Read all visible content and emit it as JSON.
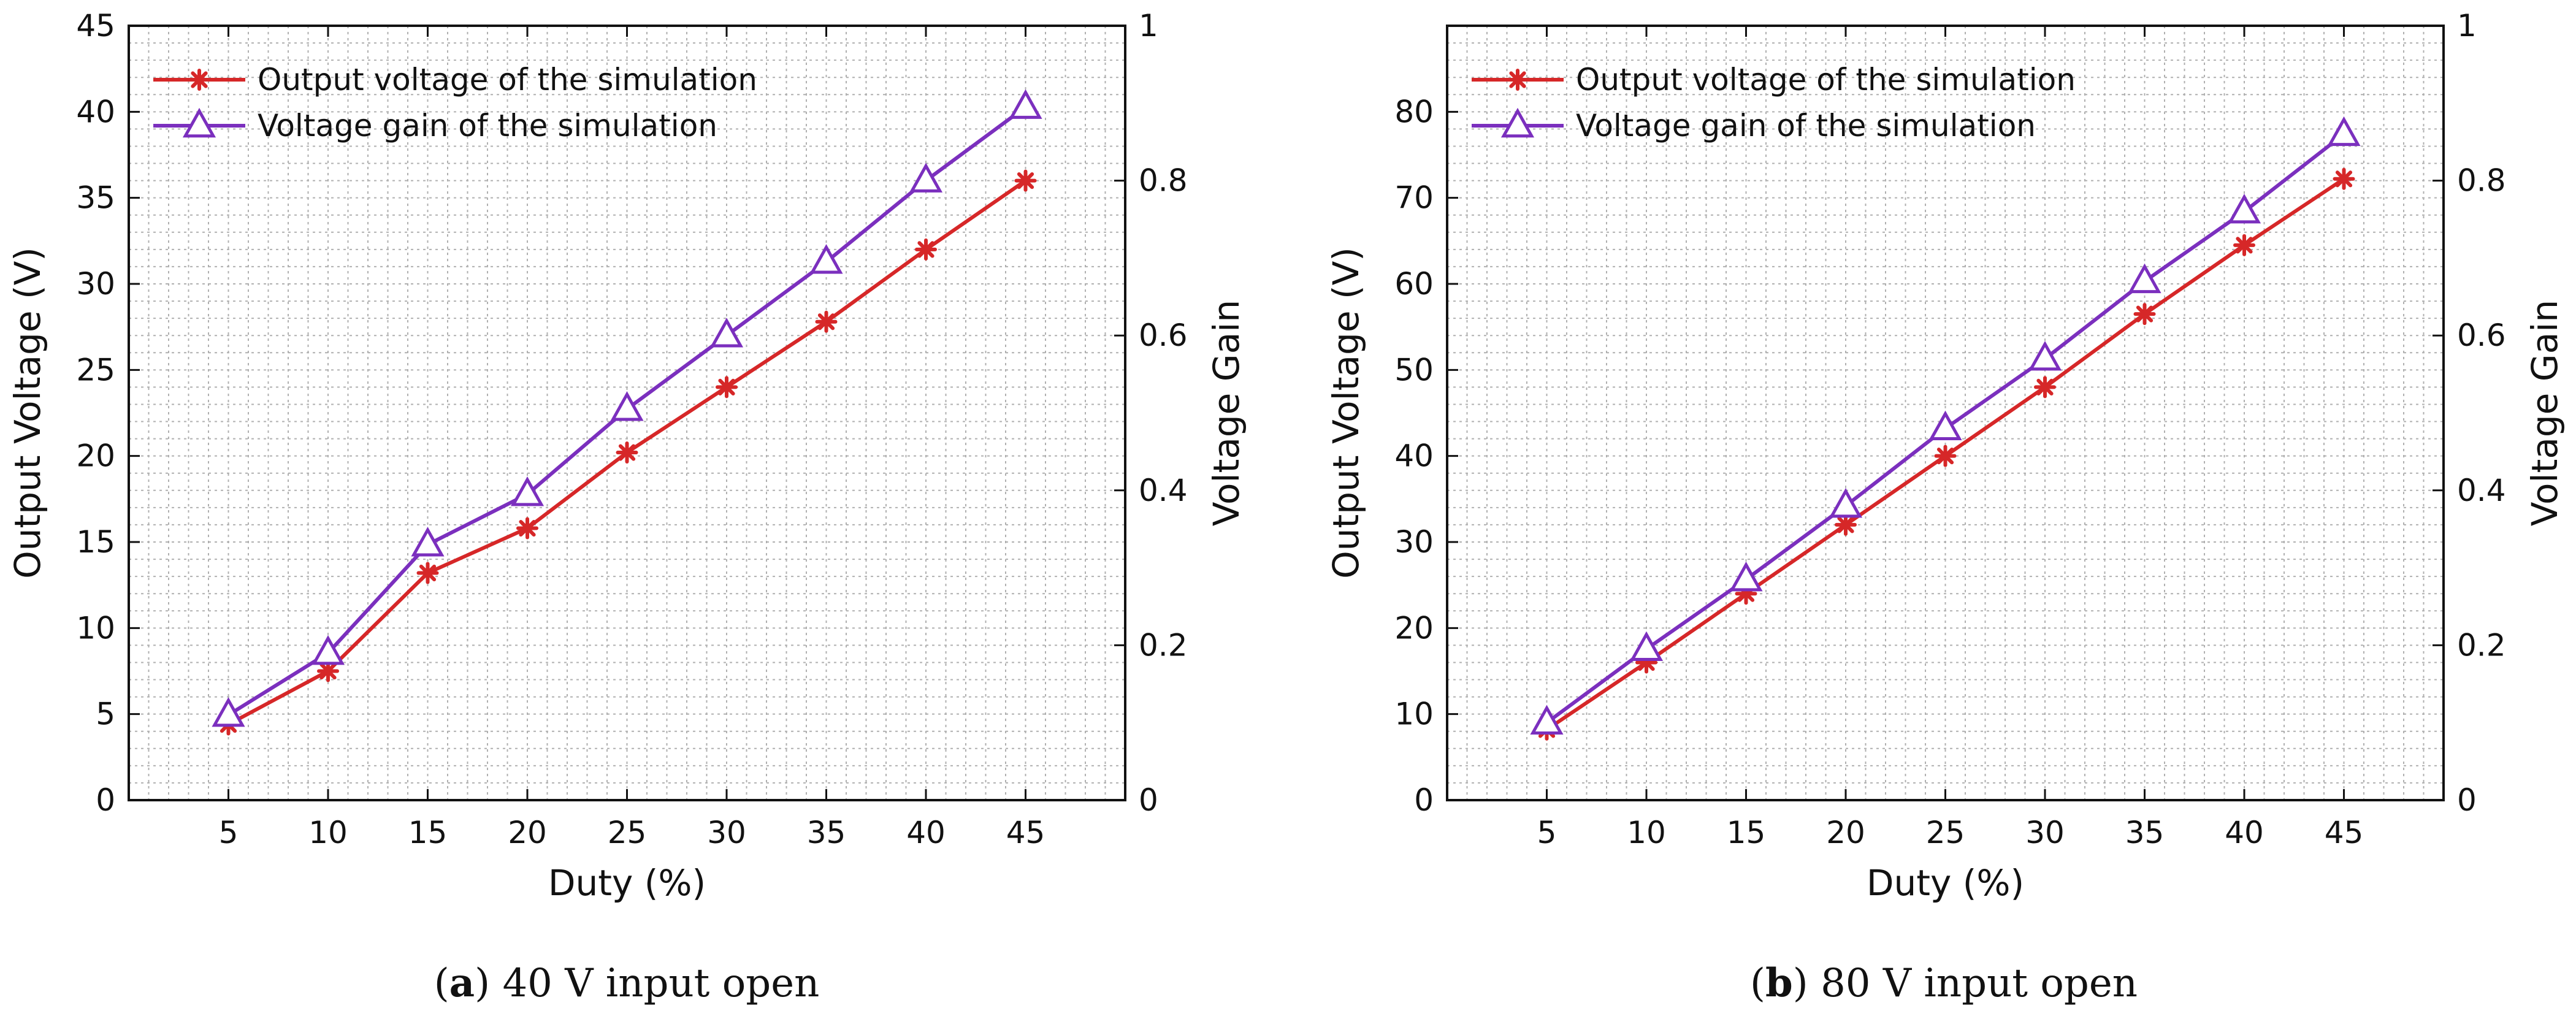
{
  "chart_data": [
    {
      "type": "line",
      "caption_tag": "a",
      "caption_text": "40 V input open",
      "xlabel": "Duty (%)",
      "ylabel": "Output Voltage (V)",
      "ylabel_right": "Voltage Gain",
      "x": [
        5,
        10,
        15,
        20,
        25,
        30,
        35,
        40,
        45
      ],
      "xlim": [
        0,
        50
      ],
      "xticks": [
        "5",
        "10",
        "15",
        "20",
        "25",
        "30",
        "35",
        "40",
        "45"
      ],
      "ylim": [
        0,
        45
      ],
      "yticks": [
        "0",
        "5",
        "10",
        "15",
        "20",
        "25",
        "30",
        "35",
        "40",
        "45"
      ],
      "ylim_right": [
        0,
        1
      ],
      "yticks_right": [
        "0",
        "0.2",
        "0.4",
        "0.6",
        "0.8",
        "1"
      ],
      "grid": true,
      "legend_position": "top-left",
      "series": [
        {
          "name": "Output voltage of the simulation",
          "axis": "left",
          "marker": "asterisk",
          "color": "#d62728",
          "values": [
            4.4,
            7.5,
            13.2,
            15.8,
            20.2,
            24.0,
            27.8,
            32.0,
            36.0
          ]
        },
        {
          "name": "Voltage gain of the simulation",
          "axis": "right",
          "marker": "triangle",
          "color": "#7b2fbe",
          "values": [
            0.11,
            0.19,
            0.33,
            0.395,
            0.505,
            0.6,
            0.695,
            0.8,
            0.895
          ]
        }
      ]
    },
    {
      "type": "line",
      "caption_tag": "b",
      "caption_text": "80 V input open",
      "xlabel": "Duty (%)",
      "ylabel": "Output Voltage (V)",
      "ylabel_right": "Voltage Gain",
      "x": [
        5,
        10,
        15,
        20,
        25,
        30,
        35,
        40,
        45
      ],
      "xlim": [
        0,
        50
      ],
      "xticks": [
        "5",
        "10",
        "15",
        "20",
        "25",
        "30",
        "35",
        "40",
        "45"
      ],
      "ylim": [
        0,
        90
      ],
      "yticks": [
        "0",
        "10",
        "20",
        "30",
        "40",
        "50",
        "60",
        "70",
        "80"
      ],
      "ylim_right": [
        0,
        1
      ],
      "yticks_right": [
        "0",
        "0.2",
        "0.4",
        "0.6",
        "0.8",
        "1"
      ],
      "grid": true,
      "legend_position": "top-left",
      "series": [
        {
          "name": "Output voltage of the simulation",
          "axis": "left",
          "marker": "asterisk",
          "color": "#d62728",
          "values": [
            8.2,
            16.0,
            24.0,
            32.0,
            40.0,
            48.0,
            56.5,
            64.5,
            72.2
          ]
        },
        {
          "name": "Voltage gain of the simulation",
          "axis": "right",
          "marker": "triangle",
          "color": "#7b2fbe",
          "values": [
            0.1,
            0.195,
            0.285,
            0.38,
            0.48,
            0.57,
            0.67,
            0.76,
            0.86
          ]
        }
      ]
    }
  ]
}
